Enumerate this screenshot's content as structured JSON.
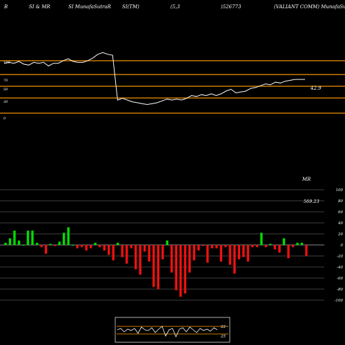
{
  "header": {
    "col1": "B",
    "col2": "SI & MR",
    "col3": "SI MunafaSutraR",
    "col4": "SI(TM)",
    "col5": "(5,3",
    "col6": ")526773",
    "col7": "(VALIANT COMM) MunafaSutra.com"
  },
  "rsi_panel": {
    "level_labels": [
      "100",
      "70",
      "50",
      "30",
      "0"
    ],
    "last_value_label": "42.9"
  },
  "mrsi_panel": {
    "title": "MR",
    "last_value_label": "569.23",
    "y_ticks": [
      "100",
      "80",
      "60",
      "40",
      "20",
      "0",
      "-20",
      "-40",
      "-60",
      "-80",
      "-100"
    ]
  },
  "mini_panel": {
    "upper_label": "22",
    "lower_label": "25"
  },
  "colors": {
    "background": "#000000",
    "rsi_line": "#ffffff",
    "level_lines": "#cc7a00",
    "positive_bar": "#00dd00",
    "negative_bar": "#ee1111",
    "grid": "#555555",
    "mini_level": "#cc7a00"
  },
  "chart_data": [
    {
      "type": "line",
      "title": "",
      "ylim": [
        0,
        100
      ],
      "levels": [
        100,
        70,
        50,
        30,
        0
      ],
      "series": [
        {
          "values": [
            61,
            62,
            61,
            63,
            60,
            59,
            62,
            61,
            62,
            58,
            61,
            61,
            64,
            66,
            63,
            62,
            62,
            64,
            67,
            71,
            73,
            71,
            70,
            20,
            22,
            20,
            18,
            17,
            16,
            15,
            16,
            17,
            19,
            21,
            20,
            21,
            20,
            22,
            25,
            24,
            26,
            25,
            27,
            25,
            27,
            30,
            32,
            28,
            29,
            30,
            33,
            34,
            36,
            38,
            37,
            40,
            39,
            41,
            42,
            43,
            43,
            43
          ]
        }
      ]
    },
    {
      "type": "bar",
      "title": "",
      "ylim": [
        -100,
        100
      ],
      "values": [
        4,
        12,
        26,
        8,
        0,
        26,
        26,
        4,
        -4,
        -16,
        2,
        -2,
        6,
        22,
        32,
        0,
        -6,
        -4,
        -10,
        -6,
        4,
        -4,
        -10,
        -18,
        -28,
        4,
        -22,
        -34,
        -6,
        -44,
        -54,
        -12,
        -30,
        -76,
        -80,
        -26,
        8,
        -50,
        -82,
        -94,
        -88,
        -50,
        -28,
        -10,
        -2,
        -32,
        -6,
        -6,
        -30,
        -4,
        -36,
        -52,
        -26,
        -22,
        -30,
        -4,
        -4,
        22,
        -4,
        2,
        -8,
        -14,
        12,
        -24,
        -4,
        4,
        4,
        -20
      ]
    },
    {
      "type": "line",
      "title": "",
      "series": [
        {
          "values": [
            0.1,
            0.3,
            -0.2,
            0.2,
            0.0,
            0.3,
            -0.4,
            0.5,
            0.1,
            0.0,
            0.4,
            -0.3,
            0.2,
            0.6,
            -0.8,
            0.1,
            0.3,
            -0.9,
            0.2,
            0.4,
            -0.2,
            0.5,
            0.1,
            -0.3,
            0.3,
            0.0,
            0.2,
            -0.1,
            0.4,
            0.1
          ]
        }
      ]
    }
  ]
}
